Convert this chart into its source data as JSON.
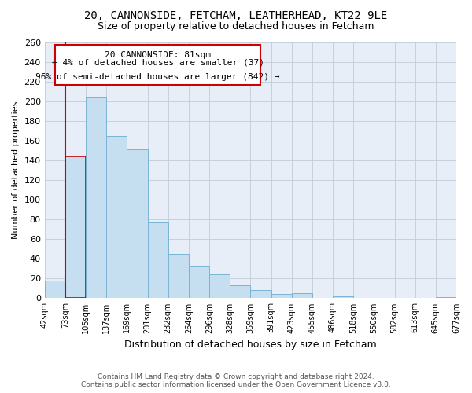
{
  "title": "20, CANNONSIDE, FETCHAM, LEATHERHEAD, KT22 9LE",
  "subtitle": "Size of property relative to detached houses in Fetcham",
  "xlabel": "Distribution of detached houses by size in Fetcham",
  "ylabel": "Number of detached properties",
  "bin_labels": [
    "42sqm",
    "73sqm",
    "105sqm",
    "137sqm",
    "169sqm",
    "201sqm",
    "232sqm",
    "264sqm",
    "296sqm",
    "328sqm",
    "359sqm",
    "391sqm",
    "423sqm",
    "455sqm",
    "486sqm",
    "518sqm",
    "550sqm",
    "582sqm",
    "613sqm",
    "645sqm",
    "677sqm"
  ],
  "bar_heights": [
    18,
    144,
    204,
    165,
    151,
    77,
    45,
    32,
    24,
    13,
    8,
    4,
    5,
    0,
    2,
    0,
    0,
    0,
    0,
    1
  ],
  "bar_color": "#c5dff0",
  "bar_edge_color": "#7ab4d4",
  "highlight_bar_index": 1,
  "highlight_color": "#cc0000",
  "ylim": [
    0,
    260
  ],
  "yticks": [
    0,
    20,
    40,
    60,
    80,
    100,
    120,
    140,
    160,
    180,
    200,
    220,
    240,
    260
  ],
  "annotation_title": "20 CANNONSIDE: 81sqm",
  "annotation_line1": "← 4% of detached houses are smaller (37)",
  "annotation_line2": "96% of semi-detached houses are larger (842) →",
  "annotation_box_color": "#ffffff",
  "annotation_box_edge": "#cc0000",
  "footer_line1": "Contains HM Land Registry data © Crown copyright and database right 2024.",
  "footer_line2": "Contains public sector information licensed under the Open Government Licence v3.0.",
  "background_color": "#ffffff",
  "plot_bg_color": "#e8eef8",
  "grid_color": "#c0ccd8"
}
